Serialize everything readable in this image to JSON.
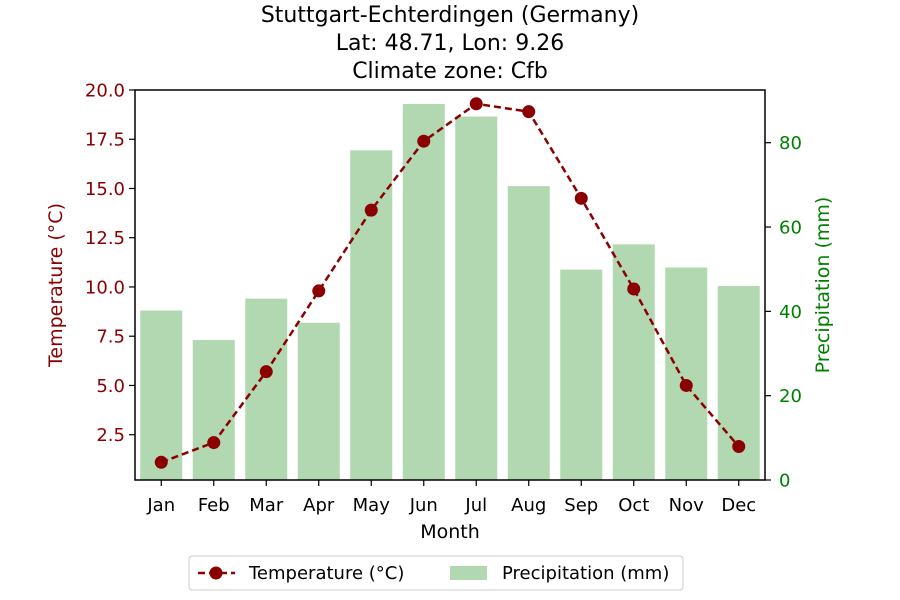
{
  "chart_data": {
    "type": "bar+line",
    "title_lines": [
      "Stuttgart-Echterdingen (Germany)",
      "Lat: 48.71, Lon: 9.26",
      "Climate zone: Cfb"
    ],
    "xlabel": "Month",
    "ylabel_left": "Temperature (°C)",
    "ylabel_right": "Precipitation (mm)",
    "categories": [
      "Jan",
      "Feb",
      "Mar",
      "Apr",
      "May",
      "Jun",
      "Jul",
      "Aug",
      "Sep",
      "Oct",
      "Nov",
      "Dec"
    ],
    "ylim_left": [
      0.2,
      20.0
    ],
    "ylim_right": [
      0,
      92.5
    ],
    "yticks_left": [
      2.5,
      5.0,
      7.5,
      10.0,
      12.5,
      15.0,
      17.5,
      20.0
    ],
    "yticks_left_labels": [
      "2.5",
      "5.0",
      "7.5",
      "10.0",
      "12.5",
      "15.0",
      "17.5",
      "20.0"
    ],
    "yticks_right": [
      0,
      20,
      40,
      60,
      80
    ],
    "yticks_right_labels": [
      "0",
      "20",
      "40",
      "60",
      "80"
    ],
    "series": [
      {
        "name": "Temperature (°C)",
        "kind": "line",
        "axis": "left",
        "color": "#8b0000",
        "style": "dashed",
        "marker": "circle",
        "values": [
          1.1,
          2.1,
          5.7,
          9.8,
          13.9,
          17.4,
          19.3,
          18.9,
          14.5,
          9.9,
          5.0,
          1.9
        ]
      },
      {
        "name": "Precipitation (mm)",
        "kind": "bar",
        "axis": "right",
        "color": "#b2d8b2",
        "values": [
          40.2,
          33.2,
          43.0,
          37.3,
          78.2,
          89.2,
          86.2,
          69.7,
          49.9,
          55.9,
          50.4,
          46.0
        ]
      }
    ],
    "legend": {
      "position": "bottom-center",
      "entries": [
        "Temperature (°C)",
        "Precipitation (mm)"
      ]
    },
    "colors": {
      "left_axis": "#8b0000",
      "right_axis": "#008000",
      "line": "#8b0000",
      "bar": "#b2d8b2"
    }
  }
}
